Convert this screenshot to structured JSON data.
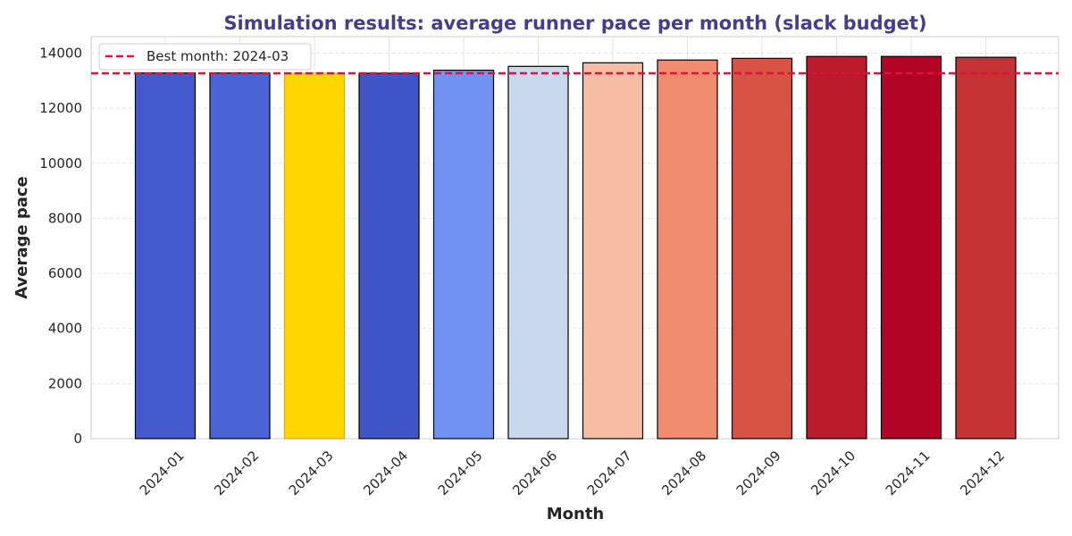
{
  "chart_data": {
    "type": "bar",
    "title": "Simulation results: average runner pace per month (slack budget)",
    "xlabel": "Month",
    "ylabel": "Average pace",
    "categories": [
      "2024-01",
      "2024-02",
      "2024-03",
      "2024-04",
      "2024-05",
      "2024-06",
      "2024-07",
      "2024-08",
      "2024-09",
      "2024-10",
      "2024-11",
      "2024-12"
    ],
    "values": [
      13280,
      13280,
      13270,
      13270,
      13380,
      13520,
      13650,
      13750,
      13810,
      13880,
      13880,
      13850
    ],
    "bar_colors": [
      "#445acc",
      "#4a64d6",
      "#ffd700",
      "#4055c8",
      "#7092f3",
      "#cad8ee",
      "#f7bca4",
      "#f08b6e",
      "#d75344",
      "#bb1b2c",
      "#b40426",
      "#c53334"
    ],
    "bar_edge_colors": [
      "#000000",
      "#000000",
      "#daa520",
      "#000000",
      "#000000",
      "#000000",
      "#000000",
      "#000000",
      "#000000",
      "#000000",
      "#000000",
      "#000000"
    ],
    "ylim": [
      0,
      14600
    ],
    "yticks": [
      0,
      2000,
      4000,
      6000,
      8000,
      10000,
      12000,
      14000
    ],
    "grid": true,
    "reference_line": {
      "value": 13270,
      "label": "Best month: 2024-03",
      "color": "#dc143c",
      "style": "dashed"
    },
    "legend_position": "top-left",
    "title_color": "#483d8b"
  }
}
